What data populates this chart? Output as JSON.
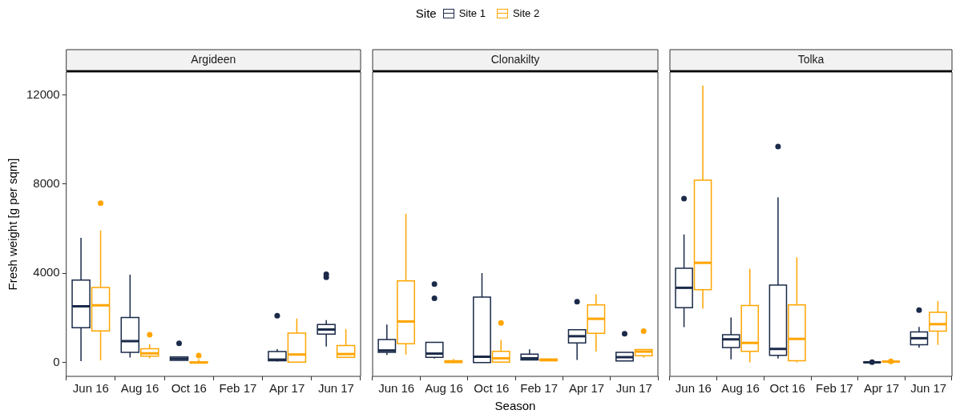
{
  "chart_data": [
    {
      "type": "box",
      "title": "Argideen",
      "ylabel": "Fresh weight [g per sqm]",
      "legend": "top",
      "legend_title": "Site",
      "categories": [
        "Jun 16",
        "Aug 16",
        "Oct 16",
        "Feb 17",
        "Apr 17",
        "Jun 17"
      ],
      "ylim": [
        -620,
        13020
      ],
      "yticks": [
        0,
        4000,
        8000,
        12000
      ],
      "series": [
        {
          "name": "Site 1",
          "color": "#1b2a49",
          "boxes": [
            {
              "low": 60,
              "q1": 1560,
              "median": 2520,
              "q3": 3700,
              "high": 5590
            },
            {
              "low": 220,
              "q1": 460,
              "median": 960,
              "q3": 2020,
              "high": 3940
            },
            {
              "low": 100,
              "q1": 100,
              "median": 170,
              "q3": 250,
              "high": 250,
              "outliers": [
                860
              ]
            },
            null,
            {
              "low": 40,
              "q1": 80,
              "median": 130,
              "q3": 490,
              "high": 600,
              "outliers": [
                2100
              ]
            },
            {
              "low": 720,
              "q1": 1270,
              "median": 1480,
              "q3": 1700,
              "high": 1900,
              "outliers": [
                3820,
                3960
              ]
            }
          ]
        },
        {
          "name": "Site 2",
          "color": "#ffa500",
          "boxes": [
            {
              "low": 100,
              "q1": 1420,
              "median": 2570,
              "q3": 3360,
              "high": 5920,
              "outliers": [
                7140
              ]
            },
            {
              "low": 190,
              "q1": 290,
              "median": 410,
              "q3": 620,
              "high": 820,
              "outliers": [
                1250
              ]
            },
            {
              "low": 0,
              "q1": 0,
              "median": 0,
              "q3": 30,
              "high": 150,
              "outliers": [
                310
              ]
            },
            null,
            {
              "low": 0,
              "q1": 20,
              "median": 360,
              "q3": 1320,
              "high": 1970
            },
            {
              "low": 230,
              "q1": 230,
              "median": 380,
              "q3": 760,
              "high": 1500
            }
          ]
        }
      ]
    },
    {
      "type": "box",
      "title": "Clonakilty",
      "xlabel": "Season",
      "tick_labels": "x",
      "categories": [
        "Jun 16",
        "Aug 16",
        "Oct 16",
        "Feb 17",
        "Apr 17",
        "Jun 17"
      ],
      "ylim": [
        -620,
        13020
      ],
      "yticks": [
        0,
        4000,
        8000,
        12000
      ],
      "series": [
        {
          "color": "#1b2a49",
          "boxes": [
            {
              "low": 340,
              "q1": 460,
              "median": 540,
              "q3": 1030,
              "high": 1700
            },
            {
              "low": 180,
              "q1": 230,
              "median": 400,
              "q3": 910,
              "high": 910,
              "outliers": [
                2880,
                3520
              ]
            },
            {
              "low": 0,
              "q1": 0,
              "median": 260,
              "q3": 2930,
              "high": 4010
            },
            {
              "low": 120,
              "q1": 120,
              "median": 190,
              "q3": 380,
              "high": 590
            },
            {
              "low": 120,
              "q1": 880,
              "median": 1180,
              "q3": 1470,
              "high": 1470,
              "outliers": [
                2730
              ]
            },
            {
              "low": 70,
              "q1": 70,
              "median": 240,
              "q3": 460,
              "high": 460,
              "outliers": [
                1290
              ]
            }
          ]
        },
        {
          "color": "#ffa500",
          "boxes": [
            {
              "low": 360,
              "q1": 840,
              "median": 1840,
              "q3": 3660,
              "high": 6670
            },
            {
              "low": 0,
              "q1": 0,
              "median": 40,
              "q3": 80,
              "high": 160
            },
            {
              "low": 0,
              "q1": 20,
              "median": 190,
              "q3": 500,
              "high": 1010,
              "outliers": [
                1780
              ]
            },
            {
              "low": 80,
              "q1": 80,
              "median": 110,
              "q3": 160,
              "high": 160
            },
            {
              "low": 490,
              "q1": 1310,
              "median": 1960,
              "q3": 2580,
              "high": 3060
            },
            {
              "low": 220,
              "q1": 300,
              "median": 490,
              "q3": 580,
              "high": 580,
              "outliers": [
                1410
              ]
            }
          ]
        }
      ]
    },
    {
      "type": "box",
      "title": "Tolka",
      "tick_labels": "x",
      "categories": [
        "Jun 16",
        "Aug 16",
        "Oct 16",
        "Feb 17",
        "Apr 17",
        "Jun 17"
      ],
      "ylim": [
        -620,
        13020
      ],
      "yticks": [
        0,
        4000,
        8000,
        12000
      ],
      "series": [
        {
          "color": "#1b2a49",
          "boxes": [
            {
              "low": 1590,
              "q1": 2460,
              "median": 3350,
              "q3": 4230,
              "high": 5740,
              "outliers": [
                7350
              ]
            },
            {
              "low": 140,
              "q1": 670,
              "median": 1040,
              "q3": 1250,
              "high": 2020
            },
            {
              "low": 180,
              "q1": 320,
              "median": 610,
              "q3": 3470,
              "high": 7400,
              "outliers": [
                9680
              ]
            },
            null,
            {
              "low": 0,
              "q1": 0,
              "median": 10,
              "q3": 20,
              "high": 30,
              "outliers": [
                20
              ]
            },
            {
              "low": 660,
              "q1": 800,
              "median": 1090,
              "q3": 1370,
              "high": 1600,
              "outliers": [
                2350
              ]
            }
          ]
        },
        {
          "color": "#ffa500",
          "boxes": [
            {
              "low": 2410,
              "q1": 3270,
              "median": 4470,
              "q3": 8170,
              "high": 12410
            },
            {
              "low": 10,
              "q1": 500,
              "median": 880,
              "q3": 2560,
              "high": 4200
            },
            {
              "low": 10,
              "q1": 80,
              "median": 1060,
              "q3": 2580,
              "high": 4720
            },
            null,
            {
              "low": 0,
              "q1": 20,
              "median": 40,
              "q3": 60,
              "high": 80,
              "outliers": [
                50
              ]
            },
            {
              "low": 790,
              "q1": 1410,
              "median": 1720,
              "q3": 2250,
              "high": 2750
            }
          ]
        }
      ]
    }
  ]
}
